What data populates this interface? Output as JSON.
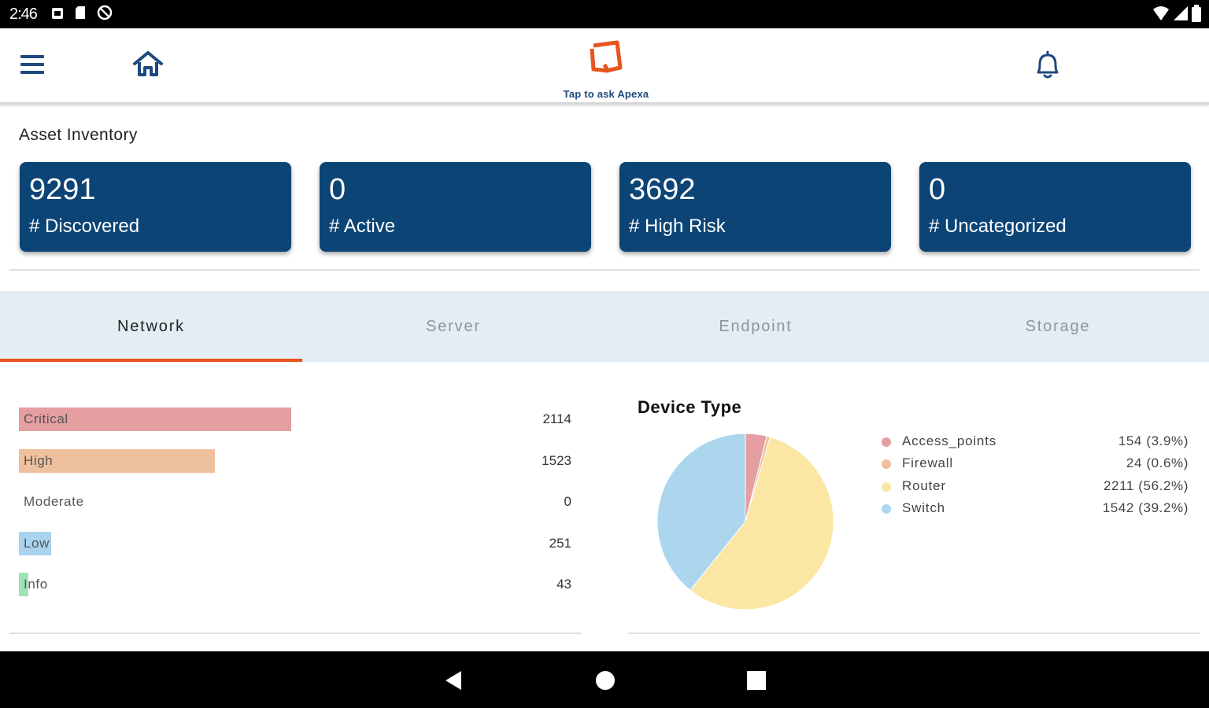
{
  "status_bar": {
    "time": "2:46",
    "left_icons": [
      "photo-icon",
      "sim-icon",
      "blocked-icon"
    ],
    "right_icons": [
      "wifi-icon",
      "signal-icon",
      "battery-icon"
    ]
  },
  "header": {
    "menu_icon": "menu-icon",
    "home_icon": "home-icon",
    "assistant_caption": "Tap to ask Apexa",
    "assistant_logo_color": "#e8531e",
    "bell_icon": "bell-icon",
    "accent": "#1d4a7e"
  },
  "inventory": {
    "title": "Asset Inventory",
    "cards": [
      {
        "value": "9291",
        "label": "# Discovered"
      },
      {
        "value": "0",
        "label": "# Active"
      },
      {
        "value": "3692",
        "label": "# High Risk"
      },
      {
        "value": "0",
        "label": "# Uncategorized"
      }
    ],
    "card_color": "#0b4475"
  },
  "tabs": {
    "items": [
      "Network",
      "Server",
      "Endpoint",
      "Storage"
    ],
    "active": "Network",
    "indicator_color": "#e8531e"
  },
  "severity": {
    "max": 2114,
    "rows": [
      {
        "label": "Critical",
        "count": "2114",
        "value": 2114,
        "color": "#e59ea2"
      },
      {
        "label": "High",
        "count": "1523",
        "value": 1523,
        "color": "#efc09d"
      },
      {
        "label": "Moderate",
        "count": "0",
        "value": 0,
        "color": "#f4e4a2"
      },
      {
        "label": "Low",
        "count": "251",
        "value": 251,
        "color": "#a9d3ef"
      },
      {
        "label": "Info",
        "count": "43",
        "value": 43,
        "color": "#9fe3b4"
      }
    ]
  },
  "device_type": {
    "title": "Device Type",
    "legend": [
      {
        "name": "Access_points",
        "display": "154 (3.9%)",
        "value": 154,
        "color": "#e59ea2"
      },
      {
        "name": "Firewall",
        "display": "24 (0.6%)",
        "value": 24,
        "color": "#efc09d"
      },
      {
        "name": "Router",
        "display": "2211 (56.2%)",
        "value": 2211,
        "color": "#fbe6a4"
      },
      {
        "name": "Switch",
        "display": "1542 (39.2%)",
        "value": 1542,
        "color": "#acd6ee"
      }
    ]
  },
  "nav_bar": {
    "icons": [
      "back-icon",
      "home-circle-icon",
      "recents-icon"
    ]
  }
}
